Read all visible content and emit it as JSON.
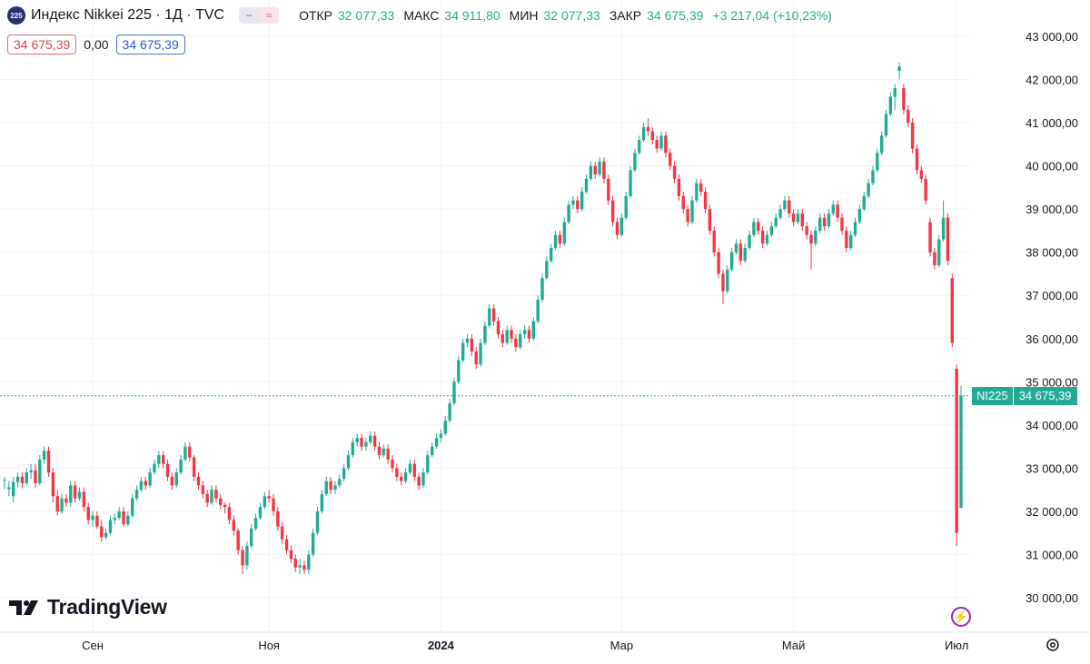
{
  "header": {
    "badge": "225",
    "title": "Индекс Nikkei 225 · 1Д · TVC",
    "flag_minus": "−",
    "flag_approx": "≈",
    "open_label": "ОТКР",
    "open_value": "32 077,33",
    "high_label": "МАКС",
    "high_value": "34 911,80",
    "low_label": "МИН",
    "low_value": "32 077,33",
    "close_label": "ЗАКР",
    "close_value": "34 675,39",
    "change": "+3 217,04 (+10,23%)"
  },
  "price_row": {
    "bid": "34 675,39",
    "spread": "0,00",
    "ask": "34 675,39"
  },
  "logo": {
    "text": "TradingView"
  },
  "price_tag": {
    "symbol": "NI225",
    "value": "34 675,39"
  },
  "colors": {
    "up": "#22ab94",
    "down": "#f23645",
    "grid": "#f0f3fa",
    "last_line": "#22ab94"
  },
  "chart_data": {
    "type": "candlestick",
    "title": "Индекс Nikkei 225 · 1Д · TVC",
    "ylim": [
      29500,
      43300
    ],
    "y_ticks": [
      30000,
      31000,
      32000,
      33000,
      34000,
      35000,
      36000,
      37000,
      38000,
      39000,
      40000,
      41000,
      42000,
      43000
    ],
    "y_tick_labels": [
      "30 000,00",
      "31 000,00",
      "32 000,00",
      "33 000,00",
      "34 000,00",
      "35 000,00",
      "36 000,00",
      "37 000,00",
      "38 000,00",
      "39 000,00",
      "40 000,00",
      "41 000,00",
      "42 000,00",
      "43 000,00"
    ],
    "x_labels": [
      "Сен",
      "Ноя",
      "2024",
      "Мар",
      "Май",
      "Июл"
    ],
    "x_label_index": [
      20,
      60,
      99,
      140,
      179,
      216
    ],
    "last_price": 34675.39,
    "grid": true,
    "candles": [
      [
        32710,
        32730,
        32510,
        32800
      ],
      [
        32510,
        32560,
        32350,
        32700
      ],
      [
        32350,
        32680,
        32200,
        32800
      ],
      [
        32680,
        32800,
        32550,
        32900
      ],
      [
        32800,
        32650,
        32550,
        32900
      ],
      [
        32650,
        32900,
        32600,
        33000
      ],
      [
        32900,
        32950,
        32750,
        33100
      ],
      [
        32950,
        32650,
        32550,
        33100
      ],
      [
        32650,
        33200,
        32600,
        33300
      ],
      [
        33200,
        33400,
        33100,
        33500
      ],
      [
        33400,
        32900,
        32800,
        33500
      ],
      [
        32900,
        32350,
        32200,
        33000
      ],
      [
        32350,
        32000,
        31900,
        32500
      ],
      [
        32000,
        32300,
        31950,
        32400
      ],
      [
        32300,
        32200,
        32100,
        32400
      ],
      [
        32200,
        32600,
        32100,
        32700
      ],
      [
        32600,
        32300,
        32200,
        32700
      ],
      [
        32300,
        32450,
        32250,
        32550
      ],
      [
        32450,
        32100,
        32000,
        32550
      ],
      [
        32100,
        31800,
        31700,
        32200
      ],
      [
        31800,
        31900,
        31650,
        32000
      ],
      [
        31900,
        31650,
        31600,
        32000
      ],
      [
        31650,
        31400,
        31300,
        31800
      ],
      [
        31400,
        31500,
        31350,
        31600
      ],
      [
        31500,
        31800,
        31450,
        31900
      ],
      [
        31800,
        31850,
        31700,
        31950
      ],
      [
        31850,
        32000,
        31800,
        32100
      ],
      [
        32000,
        31700,
        31650,
        32100
      ],
      [
        31700,
        31900,
        31650,
        32000
      ],
      [
        31900,
        32300,
        31850,
        32400
      ],
      [
        32300,
        32500,
        32250,
        32600
      ],
      [
        32500,
        32700,
        32450,
        32800
      ],
      [
        32700,
        32600,
        32500,
        32800
      ],
      [
        32600,
        32900,
        32550,
        33000
      ],
      [
        32900,
        33100,
        32850,
        33200
      ],
      [
        33100,
        33300,
        33000,
        33400
      ],
      [
        33300,
        33100,
        33000,
        33400
      ],
      [
        33100,
        32800,
        32700,
        33200
      ],
      [
        32800,
        32600,
        32500,
        32900
      ],
      [
        32600,
        32900,
        32550,
        33000
      ],
      [
        32900,
        33200,
        32850,
        33300
      ],
      [
        33200,
        33500,
        33150,
        33600
      ],
      [
        33500,
        33250,
        33150,
        33600
      ],
      [
        33250,
        32800,
        32700,
        33300
      ],
      [
        32800,
        32600,
        32500,
        32900
      ],
      [
        32600,
        32400,
        32300,
        32700
      ],
      [
        32400,
        32200,
        32100,
        32500
      ],
      [
        32200,
        32500,
        32150,
        32600
      ],
      [
        32500,
        32300,
        32200,
        32600
      ],
      [
        32300,
        32150,
        32050,
        32400
      ],
      [
        32150,
        32100,
        31950,
        32200
      ],
      [
        32100,
        31800,
        31700,
        32200
      ],
      [
        31800,
        31550,
        31450,
        31900
      ],
      [
        31550,
        31100,
        31000,
        31600
      ],
      [
        31100,
        30750,
        30550,
        31200
      ],
      [
        30750,
        31200,
        30650,
        31300
      ],
      [
        31200,
        31600,
        31150,
        31700
      ],
      [
        31600,
        31850,
        31550,
        31950
      ],
      [
        31850,
        32100,
        31800,
        32200
      ],
      [
        32100,
        32350,
        32050,
        32450
      ],
      [
        32350,
        32300,
        32200,
        32500
      ],
      [
        32300,
        32000,
        31900,
        32400
      ],
      [
        32000,
        31650,
        31550,
        32100
      ],
      [
        31650,
        31350,
        31250,
        31750
      ],
      [
        31350,
        31100,
        31000,
        31450
      ],
      [
        31100,
        30900,
        30800,
        31200
      ],
      [
        30900,
        30700,
        30600,
        31000
      ],
      [
        30700,
        30750,
        30550,
        30900
      ],
      [
        30750,
        30650,
        30550,
        30850
      ],
      [
        30650,
        31000,
        30550,
        31100
      ],
      [
        31000,
        31500,
        30950,
        31600
      ],
      [
        31500,
        32000,
        31450,
        32100
      ],
      [
        32000,
        32400,
        31950,
        32500
      ],
      [
        32400,
        32700,
        32350,
        32800
      ],
      [
        32700,
        32500,
        32400,
        32800
      ],
      [
        32500,
        32600,
        32400,
        32700
      ],
      [
        32600,
        32750,
        32550,
        32850
      ],
      [
        32750,
        33000,
        32700,
        33100
      ],
      [
        33000,
        33300,
        32950,
        33400
      ],
      [
        33300,
        33600,
        33250,
        33700
      ],
      [
        33600,
        33700,
        33500,
        33800
      ],
      [
        33700,
        33500,
        33400,
        33800
      ],
      [
        33500,
        33600,
        33400,
        33700
      ],
      [
        33600,
        33750,
        33550,
        33850
      ],
      [
        33750,
        33500,
        33400,
        33850
      ],
      [
        33500,
        33300,
        33200,
        33600
      ],
      [
        33300,
        33450,
        33250,
        33550
      ],
      [
        33450,
        33200,
        33100,
        33550
      ],
      [
        33200,
        33000,
        32900,
        33300
      ],
      [
        33000,
        32800,
        32700,
        33100
      ],
      [
        32800,
        32700,
        32600,
        32900
      ],
      [
        32700,
        32900,
        32650,
        33000
      ],
      [
        32900,
        33100,
        32850,
        33200
      ],
      [
        33100,
        32800,
        32700,
        33200
      ],
      [
        32800,
        32600,
        32500,
        32900
      ],
      [
        32600,
        32900,
        32550,
        33000
      ],
      [
        32900,
        33300,
        32850,
        33400
      ],
      [
        33300,
        33500,
        33250,
        33600
      ],
      [
        33500,
        33700,
        33450,
        33800
      ],
      [
        33700,
        33800,
        33600,
        33900
      ],
      [
        33800,
        34100,
        33750,
        34200
      ],
      [
        34100,
        34500,
        34050,
        34600
      ],
      [
        34500,
        35000,
        34450,
        35100
      ],
      [
        35000,
        35500,
        34950,
        35600
      ],
      [
        35500,
        35900,
        35450,
        36000
      ],
      [
        35900,
        36000,
        35800,
        36100
      ],
      [
        36000,
        35700,
        35600,
        36100
      ],
      [
        35700,
        35400,
        35300,
        35800
      ],
      [
        35400,
        35900,
        35350,
        36000
      ],
      [
        35900,
        36300,
        35850,
        36400
      ],
      [
        36300,
        36700,
        36250,
        36800
      ],
      [
        36700,
        36400,
        36300,
        36800
      ],
      [
        36400,
        36100,
        36000,
        36500
      ],
      [
        36100,
        35900,
        35800,
        36200
      ],
      [
        35900,
        36200,
        35850,
        36300
      ],
      [
        36200,
        36000,
        35900,
        36300
      ],
      [
        36000,
        35800,
        35700,
        36100
      ],
      [
        35800,
        36100,
        35750,
        36200
      ],
      [
        36100,
        36200,
        36000,
        36300
      ],
      [
        36200,
        36000,
        35900,
        36300
      ],
      [
        36000,
        36400,
        35950,
        36500
      ],
      [
        36400,
        36900,
        36350,
        37000
      ],
      [
        36900,
        37400,
        36850,
        37500
      ],
      [
        37400,
        37800,
        37350,
        37900
      ],
      [
        37800,
        38100,
        37750,
        38200
      ],
      [
        38100,
        38400,
        38050,
        38500
      ],
      [
        38400,
        38200,
        38100,
        38500
      ],
      [
        38200,
        38700,
        38150,
        38800
      ],
      [
        38700,
        39100,
        38650,
        39200
      ],
      [
        39100,
        39200,
        39000,
        39300
      ],
      [
        39200,
        39000,
        38900,
        39300
      ],
      [
        39000,
        39400,
        38950,
        39500
      ],
      [
        39400,
        39700,
        39350,
        39800
      ],
      [
        39700,
        40000,
        39650,
        40100
      ],
      [
        40000,
        39800,
        39700,
        40100
      ],
      [
        39800,
        40100,
        39750,
        40200
      ],
      [
        40100,
        39700,
        39600,
        40200
      ],
      [
        39700,
        39200,
        39100,
        39800
      ],
      [
        39200,
        38700,
        38600,
        39300
      ],
      [
        38700,
        38400,
        38300,
        38800
      ],
      [
        38400,
        38800,
        38350,
        38900
      ],
      [
        38800,
        39300,
        38750,
        39400
      ],
      [
        39300,
        39900,
        39250,
        40000
      ],
      [
        39900,
        40300,
        39850,
        40400
      ],
      [
        40300,
        40600,
        40250,
        40700
      ],
      [
        40600,
        40900,
        40550,
        41000
      ],
      [
        40900,
        40800,
        40700,
        41100
      ],
      [
        40800,
        40600,
        40500,
        40900
      ],
      [
        40600,
        40400,
        40300,
        40700
      ],
      [
        40400,
        40700,
        40350,
        40800
      ],
      [
        40700,
        40300,
        40200,
        40800
      ],
      [
        40300,
        40000,
        39900,
        40400
      ],
      [
        40000,
        39700,
        39600,
        40100
      ],
      [
        39700,
        39300,
        39200,
        39800
      ],
      [
        39300,
        39000,
        38900,
        39400
      ],
      [
        39000,
        38700,
        38600,
        39100
      ],
      [
        38700,
        39200,
        38650,
        39300
      ],
      [
        39200,
        39600,
        39150,
        39700
      ],
      [
        39600,
        39400,
        39300,
        39700
      ],
      [
        39400,
        39000,
        38900,
        39500
      ],
      [
        39000,
        38500,
        38400,
        39100
      ],
      [
        38500,
        38000,
        37900,
        38600
      ],
      [
        38000,
        37500,
        37400,
        38100
      ],
      [
        37500,
        37100,
        36800,
        37600
      ],
      [
        37100,
        37600,
        37050,
        37700
      ],
      [
        37600,
        38000,
        37550,
        38100
      ],
      [
        38000,
        38200,
        37950,
        38300
      ],
      [
        38200,
        37800,
        37700,
        38300
      ],
      [
        37800,
        38100,
        37750,
        38200
      ],
      [
        38100,
        38400,
        38050,
        38500
      ],
      [
        38400,
        38700,
        38350,
        38800
      ],
      [
        38700,
        38500,
        38400,
        38800
      ],
      [
        38500,
        38200,
        38100,
        38600
      ],
      [
        38200,
        38400,
        38150,
        38500
      ],
      [
        38400,
        38600,
        38350,
        38700
      ],
      [
        38600,
        38800,
        38550,
        38900
      ],
      [
        38800,
        39000,
        38750,
        39100
      ],
      [
        39000,
        39200,
        38950,
        39300
      ],
      [
        39200,
        38900,
        38800,
        39300
      ],
      [
        38900,
        38700,
        38600,
        39000
      ],
      [
        38700,
        38900,
        38650,
        39000
      ],
      [
        38900,
        38600,
        38500,
        39000
      ],
      [
        38600,
        38400,
        38300,
        38700
      ],
      [
        38400,
        38200,
        37600,
        38500
      ],
      [
        38200,
        38500,
        38150,
        38600
      ],
      [
        38500,
        38800,
        38450,
        38900
      ],
      [
        38800,
        38600,
        38500,
        38900
      ],
      [
        38600,
        38900,
        38550,
        39000
      ],
      [
        38900,
        39100,
        38850,
        39200
      ],
      [
        39100,
        38800,
        38700,
        39200
      ],
      [
        38800,
        38500,
        38400,
        38900
      ],
      [
        38500,
        38100,
        38000,
        38600
      ],
      [
        38100,
        38400,
        38050,
        38500
      ],
      [
        38400,
        38700,
        38350,
        38800
      ],
      [
        38700,
        39000,
        38650,
        39100
      ],
      [
        39000,
        39300,
        38950,
        39400
      ],
      [
        39300,
        39600,
        39250,
        39700
      ],
      [
        39600,
        39900,
        39550,
        40000
      ],
      [
        39900,
        40300,
        39850,
        40400
      ],
      [
        40300,
        40700,
        40250,
        40800
      ],
      [
        40700,
        41200,
        40650,
        41300
      ],
      [
        41200,
        41600,
        41150,
        41700
      ],
      [
        41600,
        41800,
        41300,
        41900
      ],
      [
        42200,
        42300,
        42000,
        42400
      ],
      [
        41800,
        41300,
        41200,
        41900
      ],
      [
        41300,
        41000,
        40900,
        41400
      ],
      [
        41000,
        40400,
        40300,
        41100
      ],
      [
        40400,
        39900,
        39800,
        40500
      ],
      [
        39900,
        39700,
        39600,
        40000
      ],
      [
        39700,
        39200,
        39100,
        39800
      ],
      [
        38700,
        38000,
        37900,
        38800
      ],
      [
        38000,
        37700,
        37600,
        38100
      ],
      [
        37700,
        38300,
        37650,
        38400
      ],
      [
        38300,
        38800,
        38250,
        39200
      ],
      [
        38800,
        37800,
        37700,
        38900
      ],
      [
        37400,
        35900,
        35800,
        37500
      ],
      [
        35300,
        31500,
        31200,
        35400
      ],
      [
        32077,
        34675,
        32077,
        34912
      ]
    ]
  }
}
